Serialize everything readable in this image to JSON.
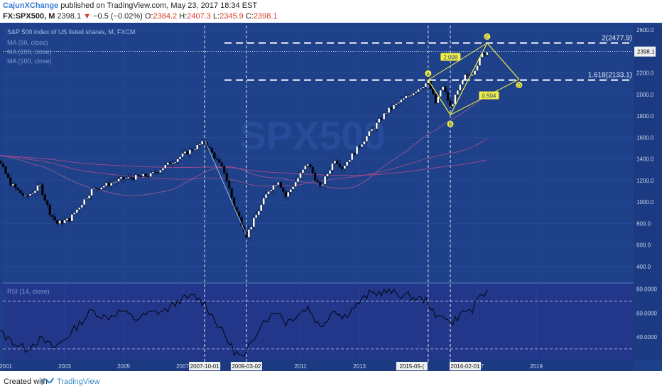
{
  "header": {
    "author": "CajunXChange",
    "published_text": "published on TradingView.com, May 23, 2017 18:34 EST",
    "symbol": "FX:SPX500, M",
    "last": "2398.1",
    "change": "−0.5 (−0.02%)",
    "open_label": "O:",
    "open": "2384.2",
    "high_label": "H:",
    "high": "2407.3",
    "low_label": "L:",
    "low": "2345.9",
    "close_label": "C:",
    "close": "2398.1"
  },
  "footer": {
    "created_with": "Created with",
    "brand": "TradingView"
  },
  "colors": {
    "background": "#1e3f8a",
    "candle_up": "#ffffff",
    "candle_down": "#000000",
    "ma50": "#a75a9e",
    "ma100": "#b04f86",
    "ma200": "#c0498f",
    "pattern": "#f2ee43",
    "abcd_line": "#8fbde0",
    "axis_text": "#c9d4ea"
  },
  "chart_data": [
    {
      "type": "candlestick",
      "title": "S&P 500 index of US listed shares, M, FXCM",
      "legend": [
        "MA (50, close)",
        "MA (200, close)",
        "MA (100, close)"
      ],
      "x_tick_labels": [
        "2001",
        "2003",
        "2005",
        "2007",
        "2009",
        "2011",
        "2013",
        "2015",
        "2017",
        "2019"
      ],
      "x_markers": [
        "2007-10-01",
        "2009-03-02",
        "2015-05-(",
        "2016-02-01"
      ],
      "y_tick_labels": [
        "400.0",
        "600.0",
        "800.0",
        "1000.0",
        "1200.0",
        "1400.0",
        "1600.0",
        "1800.0",
        "2000.0",
        "2200.0",
        "2400.0",
        "2600.0"
      ],
      "ylim": [
        260,
        2640
      ],
      "price_label": "2398.1",
      "fib_levels": [
        {
          "label": "2(2477.9)",
          "value": 2477.9
        },
        {
          "label": "1.618(2133.1)",
          "value": 2133.1
        }
      ],
      "pattern_points": [
        {
          "label": "A",
          "date": "2015-05",
          "value": 2135
        },
        {
          "label": "B",
          "date": "2016-02",
          "value": 1810
        },
        {
          "label": "C",
          "date": "2017-05",
          "value": 2478
        },
        {
          "label": "D",
          "date": "2018-06",
          "value": 2140
        }
      ],
      "pattern_ratios": [
        "2.008",
        "0.504"
      ],
      "price_path": [
        {
          "date": "2000-01",
          "value": 1430
        },
        {
          "date": "2000-09",
          "value": 1440
        },
        {
          "date": "2001-03",
          "value": 1170
        },
        {
          "date": "2001-09",
          "value": 1040
        },
        {
          "date": "2002-03",
          "value": 1150
        },
        {
          "date": "2002-07",
          "value": 900
        },
        {
          "date": "2002-10",
          "value": 800
        },
        {
          "date": "2003-03",
          "value": 840
        },
        {
          "date": "2003-12",
          "value": 1110
        },
        {
          "date": "2004-12",
          "value": 1210
        },
        {
          "date": "2005-12",
          "value": 1250
        },
        {
          "date": "2006-12",
          "value": 1420
        },
        {
          "date": "2007-10",
          "value": 1560
        },
        {
          "date": "2008-06",
          "value": 1280
        },
        {
          "date": "2008-10",
          "value": 960
        },
        {
          "date": "2009-03",
          "value": 690
        },
        {
          "date": "2009-12",
          "value": 1110
        },
        {
          "date": "2010-04",
          "value": 1200
        },
        {
          "date": "2010-07",
          "value": 1050
        },
        {
          "date": "2011-04",
          "value": 1360
        },
        {
          "date": "2011-09",
          "value": 1130
        },
        {
          "date": "2012-03",
          "value": 1400
        },
        {
          "date": "2012-06",
          "value": 1320
        },
        {
          "date": "2013-05",
          "value": 1640
        },
        {
          "date": "2013-12",
          "value": 1840
        },
        {
          "date": "2014-09",
          "value": 1990
        },
        {
          "date": "2015-05",
          "value": 2120
        },
        {
          "date": "2015-08",
          "value": 1920
        },
        {
          "date": "2015-11",
          "value": 2080
        },
        {
          "date": "2016-02",
          "value": 1880
        },
        {
          "date": "2016-08",
          "value": 2170
        },
        {
          "date": "2016-11",
          "value": 2200
        },
        {
          "date": "2017-03",
          "value": 2370
        },
        {
          "date": "2017-05",
          "value": 2398
        }
      ]
    },
    {
      "type": "line",
      "title": "RSI (14, close)",
      "y_tick_labels": [
        "40.0000",
        "60.0000",
        "80.0000"
      ],
      "ylim": [
        21,
        84
      ],
      "bands": [
        70,
        30
      ],
      "points": [
        {
          "date": "2000-01",
          "value": 55
        },
        {
          "date": "2000-07",
          "value": 50
        },
        {
          "date": "2001-03",
          "value": 37
        },
        {
          "date": "2001-09",
          "value": 30
        },
        {
          "date": "2002-03",
          "value": 38
        },
        {
          "date": "2002-09",
          "value": 31
        },
        {
          "date": "2003-03",
          "value": 42
        },
        {
          "date": "2003-12",
          "value": 62
        },
        {
          "date": "2004-06",
          "value": 56
        },
        {
          "date": "2004-12",
          "value": 62
        },
        {
          "date": "2005-06",
          "value": 55
        },
        {
          "date": "2005-12",
          "value": 60
        },
        {
          "date": "2006-06",
          "value": 62
        },
        {
          "date": "2006-12",
          "value": 71
        },
        {
          "date": "2007-06",
          "value": 74
        },
        {
          "date": "2007-10",
          "value": 68
        },
        {
          "date": "2008-06",
          "value": 42
        },
        {
          "date": "2008-10",
          "value": 28
        },
        {
          "date": "2009-02",
          "value": 22
        },
        {
          "date": "2009-09",
          "value": 52
        },
        {
          "date": "2010-04",
          "value": 62
        },
        {
          "date": "2010-07",
          "value": 52
        },
        {
          "date": "2011-04",
          "value": 65
        },
        {
          "date": "2011-09",
          "value": 48
        },
        {
          "date": "2012-03",
          "value": 64
        },
        {
          "date": "2012-06",
          "value": 56
        },
        {
          "date": "2013-05",
          "value": 76
        },
        {
          "date": "2013-12",
          "value": 78
        },
        {
          "date": "2014-09",
          "value": 74
        },
        {
          "date": "2015-05",
          "value": 70
        },
        {
          "date": "2015-08",
          "value": 55
        },
        {
          "date": "2015-11",
          "value": 60
        },
        {
          "date": "2016-02",
          "value": 51
        },
        {
          "date": "2016-08",
          "value": 62
        },
        {
          "date": "2016-11",
          "value": 62
        },
        {
          "date": "2017-03",
          "value": 76
        },
        {
          "date": "2017-05",
          "value": 77
        }
      ]
    }
  ]
}
